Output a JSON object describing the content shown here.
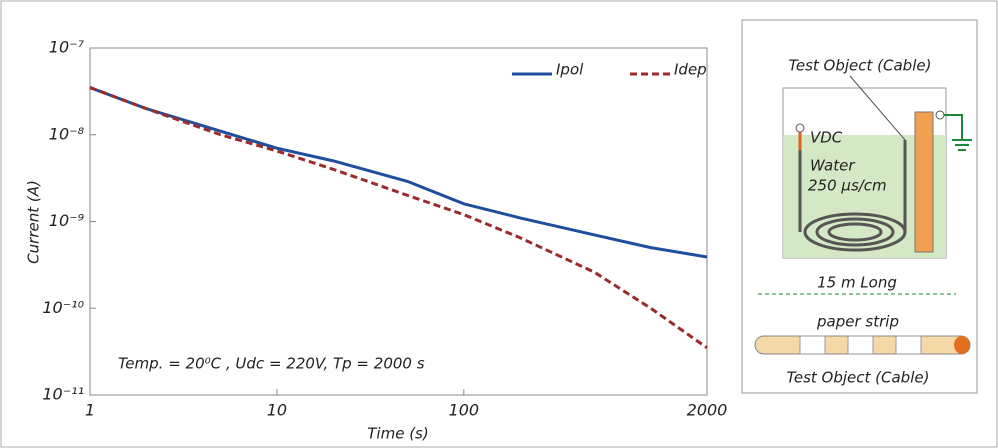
{
  "chart_data": {
    "type": "line",
    "log_x": true,
    "log_y": true,
    "xlabel": "Time (s)",
    "ylabel": "Current (A)",
    "x": [
      1,
      2,
      5,
      10,
      20,
      50,
      100,
      200,
      500,
      1000,
      2000
    ],
    "series": [
      {
        "name": "Ipol",
        "color": "#1f4e9c",
        "dash": "solid",
        "values": [
          3.5e-08,
          2e-08,
          1.1e-08,
          7e-09,
          5e-09,
          2.9e-09,
          1.6e-09,
          1.1e-09,
          7e-10,
          5e-10,
          3.9e-10
        ]
      },
      {
        "name": "Idep",
        "color": "#9b2b2b",
        "dash": "dashed",
        "values": [
          3.5e-08,
          2e-08,
          1e-08,
          6.5e-09,
          4e-09,
          2e-09,
          1.2e-09,
          6.5e-10,
          2.6e-10,
          1e-10,
          3.5e-11
        ]
      }
    ],
    "xlim": [
      1,
      2000
    ],
    "xticks": [
      1,
      10,
      100,
      2000
    ],
    "ylim": [
      1e-11,
      1e-07
    ],
    "yticks": [
      {
        "value": 1e-11,
        "label": "10⁻¹¹"
      },
      {
        "value": 1e-10,
        "label": "10⁻¹⁰"
      },
      {
        "value": 1e-09,
        "label": "10⁻⁹"
      },
      {
        "value": 1e-08,
        "label": "10⁻⁸"
      },
      {
        "value": 1e-07,
        "label": "10⁻⁷"
      }
    ],
    "legend": "upper right",
    "annotation": "Temp. = 20⁰C , Udc = 220V, Tp = 2000 s"
  },
  "diagram": {
    "cable_label": "Test Object (Cable)",
    "source": "VDC",
    "water": "Water",
    "conductivity": "250 µs/cm",
    "length": "15 m Long",
    "strip": "paper strip",
    "cable_label_bottom": "Test Object (Cable)"
  }
}
